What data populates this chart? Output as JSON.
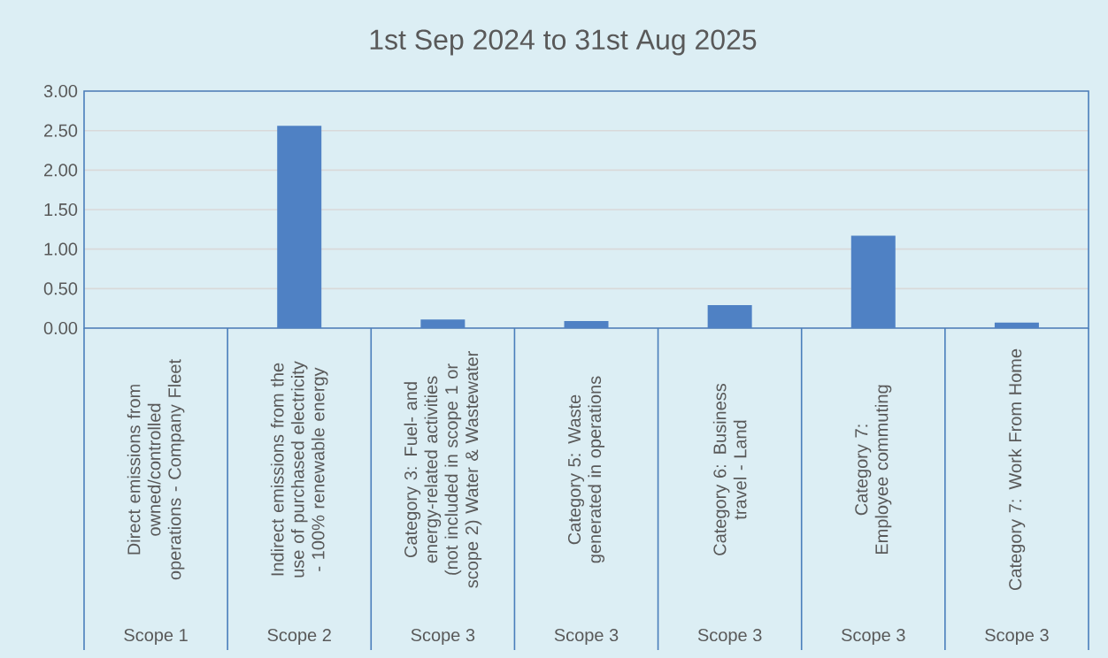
{
  "chart_data": {
    "type": "bar",
    "title": "1st Sep 2024 to 31st Aug 2025",
    "categories": [
      "Direct emissions from owned/controlled operations - Company Fleet",
      "Indirect emissions from the use of purchased electricity - 100% renewable energy",
      "Category 3: Fuel- and energy-related activities (not included in scope 1 or scope 2) Water & Wastewater",
      "Category 5: Waste generated in operations",
      "Category 6: Business travel - Land",
      "Category 7: Employee commuting",
      "Category 7: Work From Home"
    ],
    "values": [
      0,
      2.56,
      0.11,
      0.09,
      0.29,
      1.17,
      0.07
    ],
    "color": "#4f81c4",
    "ylim": [
      0,
      3
    ],
    "yticks": [
      {
        "value": 0,
        "label": "0.00"
      },
      {
        "value": 0.5,
        "label": "0.50"
      },
      {
        "value": 1,
        "label": "1.00"
      },
      {
        "value": 1.5,
        "label": "1.50"
      },
      {
        "value": 2,
        "label": "2.00"
      },
      {
        "value": 2.5,
        "label": "2.50"
      },
      {
        "value": 3,
        "label": "3.00"
      }
    ],
    "grid": "y",
    "annotations": [
      "Scope 1",
      "Scope 2",
      "Scope 3",
      "Scope 3",
      "Scope 3",
      "Scope 3",
      "Scope 3"
    ]
  }
}
